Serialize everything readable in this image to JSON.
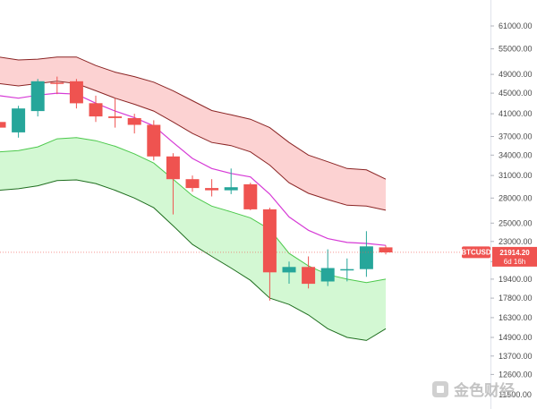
{
  "chart_data": {
    "type": "candlestick",
    "symbol": "BTCUSD",
    "last_price_label": "21914.20",
    "countdown_label": "6d 16h",
    "price_axis": {
      "scale": "log",
      "ticks": [
        {
          "value": 61000,
          "label": "61000.00"
        },
        {
          "value": 55000,
          "label": "55000.00"
        },
        {
          "value": 49000,
          "label": "49000.00"
        },
        {
          "value": 45000,
          "label": "45000.00"
        },
        {
          "value": 41000,
          "label": "41000.00"
        },
        {
          "value": 37000,
          "label": "37000.00"
        },
        {
          "value": 34000,
          "label": "34000.00"
        },
        {
          "value": 31000,
          "label": "31000.00"
        },
        {
          "value": 28000,
          "label": "28000.00"
        },
        {
          "value": 25000,
          "label": "25000.00"
        },
        {
          "value": 23000,
          "label": "23000.00"
        },
        {
          "value": 21000,
          "label": "21000.00"
        },
        {
          "value": 19400,
          "label": "19400.00"
        },
        {
          "value": 17800,
          "label": "17800.00"
        },
        {
          "value": 16300,
          "label": "16300.00"
        },
        {
          "value": 14900,
          "label": "14900.00"
        },
        {
          "value": 13700,
          "label": "13700.00"
        },
        {
          "value": 12600,
          "label": "12600.00"
        },
        {
          "value": 11500,
          "label": "11500.00"
        }
      ]
    },
    "candles": [
      {
        "o": 39500,
        "h": 45000,
        "l": 37500,
        "c": 38500
      },
      {
        "o": 37700,
        "h": 42500,
        "l": 36800,
        "c": 42000
      },
      {
        "o": 41500,
        "h": 48000,
        "l": 40500,
        "c": 47500
      },
      {
        "o": 47200,
        "h": 48500,
        "l": 44800,
        "c": 47000
      },
      {
        "o": 47500,
        "h": 48000,
        "l": 42000,
        "c": 43000
      },
      {
        "o": 43000,
        "h": 44500,
        "l": 39500,
        "c": 40500
      },
      {
        "o": 40500,
        "h": 44000,
        "l": 38500,
        "c": 40200
      },
      {
        "o": 40200,
        "h": 41000,
        "l": 37500,
        "c": 39000
      },
      {
        "o": 39000,
        "h": 39800,
        "l": 33200,
        "c": 33800
      },
      {
        "o": 33800,
        "h": 34300,
        "l": 26000,
        "c": 30500
      },
      {
        "o": 30500,
        "h": 31000,
        "l": 28800,
        "c": 29300
      },
      {
        "o": 29300,
        "h": 30500,
        "l": 28200,
        "c": 29000
      },
      {
        "o": 29000,
        "h": 32000,
        "l": 28500,
        "c": 29400
      },
      {
        "o": 29800,
        "h": 30000,
        "l": 26500,
        "c": 26600
      },
      {
        "o": 26600,
        "h": 26800,
        "l": 17600,
        "c": 20000
      },
      {
        "o": 20000,
        "h": 21000,
        "l": 19000,
        "c": 20500
      },
      {
        "o": 20500,
        "h": 21500,
        "l": 18600,
        "c": 19000
      },
      {
        "o": 19200,
        "h": 22200,
        "l": 18800,
        "c": 20400
      },
      {
        "o": 20200,
        "h": 21300,
        "l": 19200,
        "c": 20300
      },
      {
        "o": 20300,
        "h": 24100,
        "l": 19600,
        "c": 22500
      },
      {
        "o": 22400,
        "h": 22600,
        "l": 21700,
        "c": 21900
      }
    ],
    "band_upper_top": [
      53000,
      52300,
      52500,
      53000,
      53000,
      51000,
      49500,
      48500,
      47300,
      45500,
      43500,
      41600,
      40800,
      40000,
      38500,
      36000,
      34000,
      33000,
      32000,
      31800,
      30500
    ],
    "band_upper_bottom": [
      47000,
      46500,
      47000,
      47500,
      47000,
      45500,
      44000,
      42800,
      41500,
      39500,
      37500,
      36000,
      35500,
      34500,
      32500,
      30000,
      28600,
      27800,
      27100,
      27000,
      26500
    ],
    "middle_line": [
      44500,
      44000,
      44600,
      45000,
      44800,
      43000,
      41500,
      40300,
      38800,
      36000,
      33500,
      32000,
      31300,
      30800,
      28500,
      25700,
      24200,
      23300,
      22900,
      22800,
      22600
    ],
    "band_lower_top": [
      34500,
      34700,
      35300,
      36600,
      36800,
      36300,
      35400,
      34200,
      32800,
      30500,
      28300,
      27000,
      26300,
      25600,
      24300,
      21800,
      20600,
      19800,
      19400,
      19100,
      19400
    ],
    "band_lower_bottom": [
      29000,
      29200,
      29600,
      30300,
      30400,
      29900,
      29000,
      28000,
      26800,
      24700,
      22700,
      21500,
      20400,
      19300,
      17800,
      17300,
      16500,
      15500,
      14900,
      14700,
      15500
    ]
  },
  "watermark": {
    "text": "金色财经"
  },
  "colors": {
    "up": "#26a69a",
    "down": "#ef5350",
    "upper_band_fill": "#fcd2d2",
    "upper_band_line": "#8a2424",
    "lower_band_fill": "#d3f8d3",
    "lower_band_top_line": "#4cc94c",
    "lower_band_bottom_line": "#1f6e1f",
    "middle_line": "#d63bd6"
  }
}
